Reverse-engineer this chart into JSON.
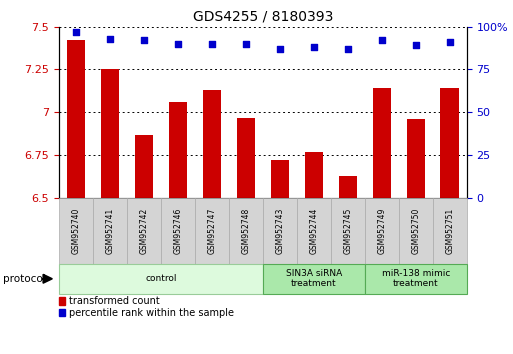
{
  "title": "GDS4255 / 8180393",
  "samples": [
    "GSM952740",
    "GSM952741",
    "GSM952742",
    "GSM952746",
    "GSM952747",
    "GSM952748",
    "GSM952743",
    "GSM952744",
    "GSM952745",
    "GSM952749",
    "GSM952750",
    "GSM952751"
  ],
  "bar_values": [
    7.42,
    7.25,
    6.87,
    7.06,
    7.13,
    6.97,
    6.72,
    6.77,
    6.63,
    7.14,
    6.96,
    7.14
  ],
  "dot_values": [
    97,
    93,
    92,
    90,
    90,
    90,
    87,
    88,
    87,
    92,
    89,
    91
  ],
  "bar_color": "#cc0000",
  "dot_color": "#0000cc",
  "ylim_left": [
    6.5,
    7.5
  ],
  "ylim_right": [
    0,
    100
  ],
  "yticks_left": [
    6.5,
    6.75,
    7.0,
    7.25,
    7.5
  ],
  "yticks_right": [
    0,
    25,
    50,
    75,
    100
  ],
  "groups": [
    {
      "label": "control",
      "start": 0,
      "end": 6,
      "color": "#ddfadd",
      "edge_color": "#99cc99"
    },
    {
      "label": "SIN3A siRNA\ntreatment",
      "start": 6,
      "end": 9,
      "color": "#aae8aa",
      "edge_color": "#55aa55"
    },
    {
      "label": "miR-138 mimic\ntreatment",
      "start": 9,
      "end": 12,
      "color": "#aae8aa",
      "edge_color": "#55aa55"
    }
  ],
  "protocol_label": "protocol",
  "legend_bar_label": "transformed count",
  "legend_dot_label": "percentile rank within the sample",
  "bar_width": 0.55,
  "background_color": "#ffffff",
  "axis_label_fontsize": 8.0,
  "title_fontsize": 10
}
